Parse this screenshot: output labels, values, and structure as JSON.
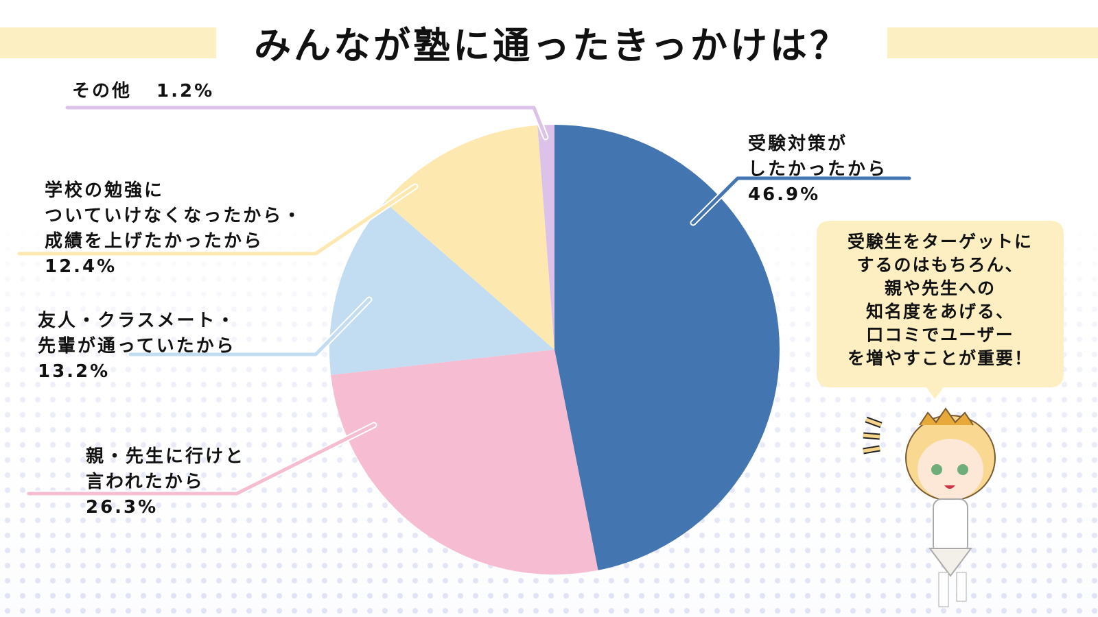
{
  "chart_data": {
    "type": "pie",
    "title": "みんなが塾に通ったきっかけは？",
    "categories": [
      "受験対策が\nしたかったから",
      "親・先生に行けと\n言われたから",
      "友人・クラスメート・\n先輩が通っていたから",
      "学校の勉強に\nついていけなくなったから・\n成績を上げたかったから",
      "その他"
    ],
    "values": [
      46.9,
      26.3,
      13.2,
      12.4,
      1.2
    ],
    "value_labels": [
      "46.9%",
      "26.3%",
      "13.2%",
      "12.4%",
      "1.2%"
    ],
    "colors": [
      "#4375b0",
      "#f6bcd1",
      "#c2ddf1",
      "#fde9b0",
      "#dcc2e9"
    ],
    "annotation": "受験生をターゲットに\nするのはもちろん、\n親や先生への\n知名度をあげる、\n口コミでユーザー\nを増やすことが重要！"
  }
}
